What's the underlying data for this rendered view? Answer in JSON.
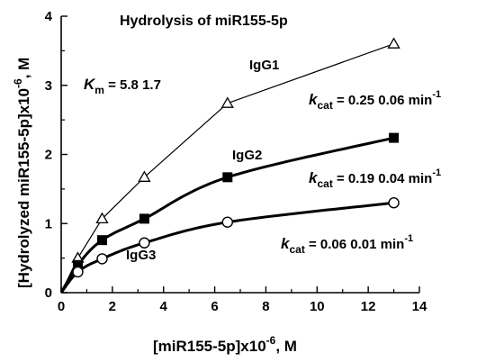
{
  "chart_data": {
    "type": "line",
    "title": "Hydrolysis of miR155-5p",
    "xlabel": "[miR155-5p]x10",
    "xlabel_exp": "-6",
    "xlabel_unit": ", M",
    "ylabel": "[Hydrolyzed miR155-5p]x10",
    "ylabel_exp": "-6",
    "ylabel_unit": ", M",
    "xlim": [
      0,
      14
    ],
    "ylim": [
      0,
      4
    ],
    "xticks": [
      "0",
      "2",
      "4",
      "6",
      "8",
      "10",
      "12",
      "14"
    ],
    "yticks": [
      "0",
      "1",
      "2",
      "3",
      "4"
    ],
    "grid": false,
    "series": [
      {
        "name": "IgG1",
        "marker": "open-triangle",
        "line": "thin-segments",
        "x": [
          0.65,
          1.6,
          3.25,
          6.5,
          13.0
        ],
        "y": [
          0.5,
          1.07,
          1.67,
          2.74,
          3.6
        ]
      },
      {
        "name": "IgG2",
        "marker": "filled-square",
        "line": "thick-fit",
        "x": [
          0.65,
          1.6,
          3.25,
          6.5,
          13.0
        ],
        "y": [
          0.4,
          0.76,
          1.07,
          1.67,
          2.24
        ]
      },
      {
        "name": "IgG3",
        "marker": "open-circle",
        "line": "thick-fit",
        "x": [
          0.65,
          1.6,
          3.25,
          6.5,
          13.0
        ],
        "y": [
          0.3,
          0.49,
          0.72,
          1.02,
          1.3
        ]
      }
    ],
    "annotations": {
      "km_label": "K",
      "km_sub": "m",
      "km_value": " =  5.8   1.7",
      "kcat1_label": "k",
      "kcat1_sub": "cat",
      "kcat1_value": " = 0.25    0.06  min",
      "kcat2_label": "k",
      "kcat2_sub": "cat",
      "kcat2_value": " = 0.19    0.04  min",
      "kcat3_label": "k",
      "kcat3_sub": "cat",
      "kcat3_value": " = 0.06     0.01 min",
      "kcat_sup": "-1"
    }
  }
}
